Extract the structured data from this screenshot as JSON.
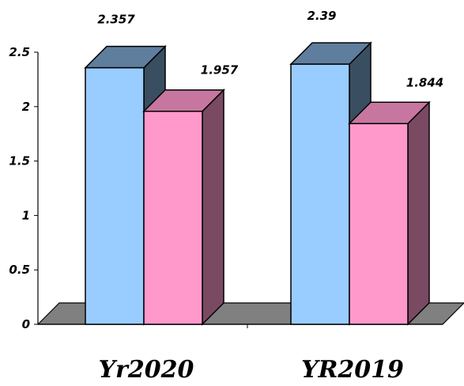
{
  "chart_data": {
    "type": "bar",
    "categories": [
      "Yr2020",
      "YR2019"
    ],
    "series": [
      {
        "values": [
          2.357,
          2.39
        ],
        "color": "#99ccff"
      },
      {
        "values": [
          1.957,
          1.844
        ],
        "color": "#ff99cc"
      }
    ],
    "value_labels": [
      [
        "2.357",
        "2.39"
      ],
      [
        "1.957",
        "1.844"
      ]
    ],
    "y_ticks": [
      0,
      0.5,
      1,
      1.5,
      2,
      2.5
    ],
    "y_tick_labels": [
      "0",
      "0.5",
      "1",
      "1.5",
      "2",
      "2.5"
    ],
    "ylim": [
      0,
      2.5
    ],
    "grid": false,
    "legend": "none",
    "three_d": true,
    "floor_color": "#808080"
  }
}
